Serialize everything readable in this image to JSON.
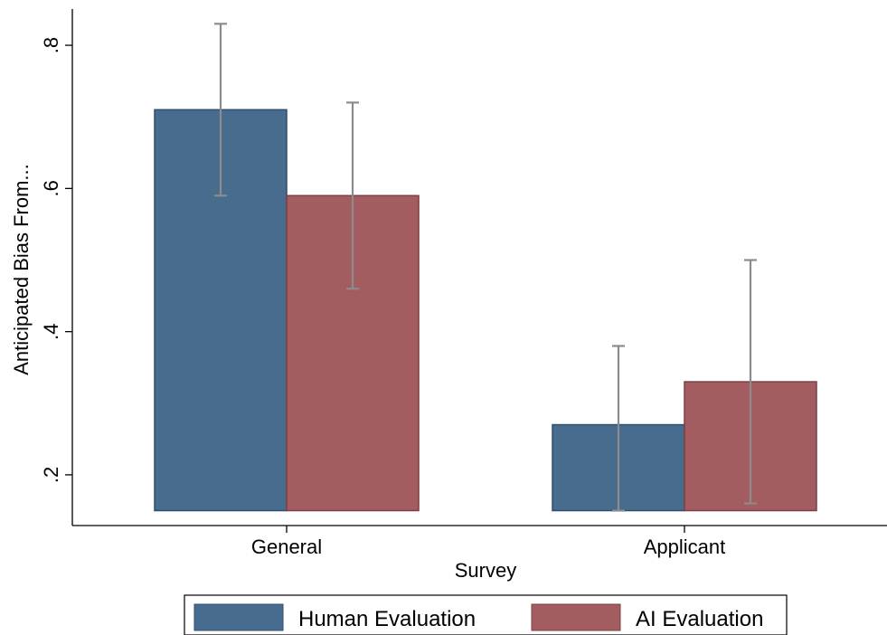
{
  "chart_data": {
    "type": "bar",
    "title": "",
    "xlabel": "Survey",
    "ylabel": "Anticipated Bias From...",
    "categories": [
      "General",
      "Applicant"
    ],
    "series": [
      {
        "name": "Human Evaluation",
        "color": "#476C8E",
        "values": [
          0.71,
          0.27
        ],
        "ci_low": [
          0.59,
          0.15
        ],
        "ci_high": [
          0.83,
          0.38
        ]
      },
      {
        "name": "AI Evaluation",
        "color": "#A35D61",
        "values": [
          0.59,
          0.33
        ],
        "ci_low": [
          0.46,
          0.16
        ],
        "ci_high": [
          0.72,
          0.5
        ]
      }
    ],
    "ylim": [
      0.15,
      0.85
    ],
    "bar_base": 0.15,
    "yticks": [
      0.2,
      0.4,
      0.6,
      0.8
    ],
    "ytick_labels": [
      ".2",
      ".4",
      ".6",
      ".8"
    ],
    "errorbar_color": "#8C8C8C",
    "grid": false,
    "legend_position": "bottom"
  }
}
